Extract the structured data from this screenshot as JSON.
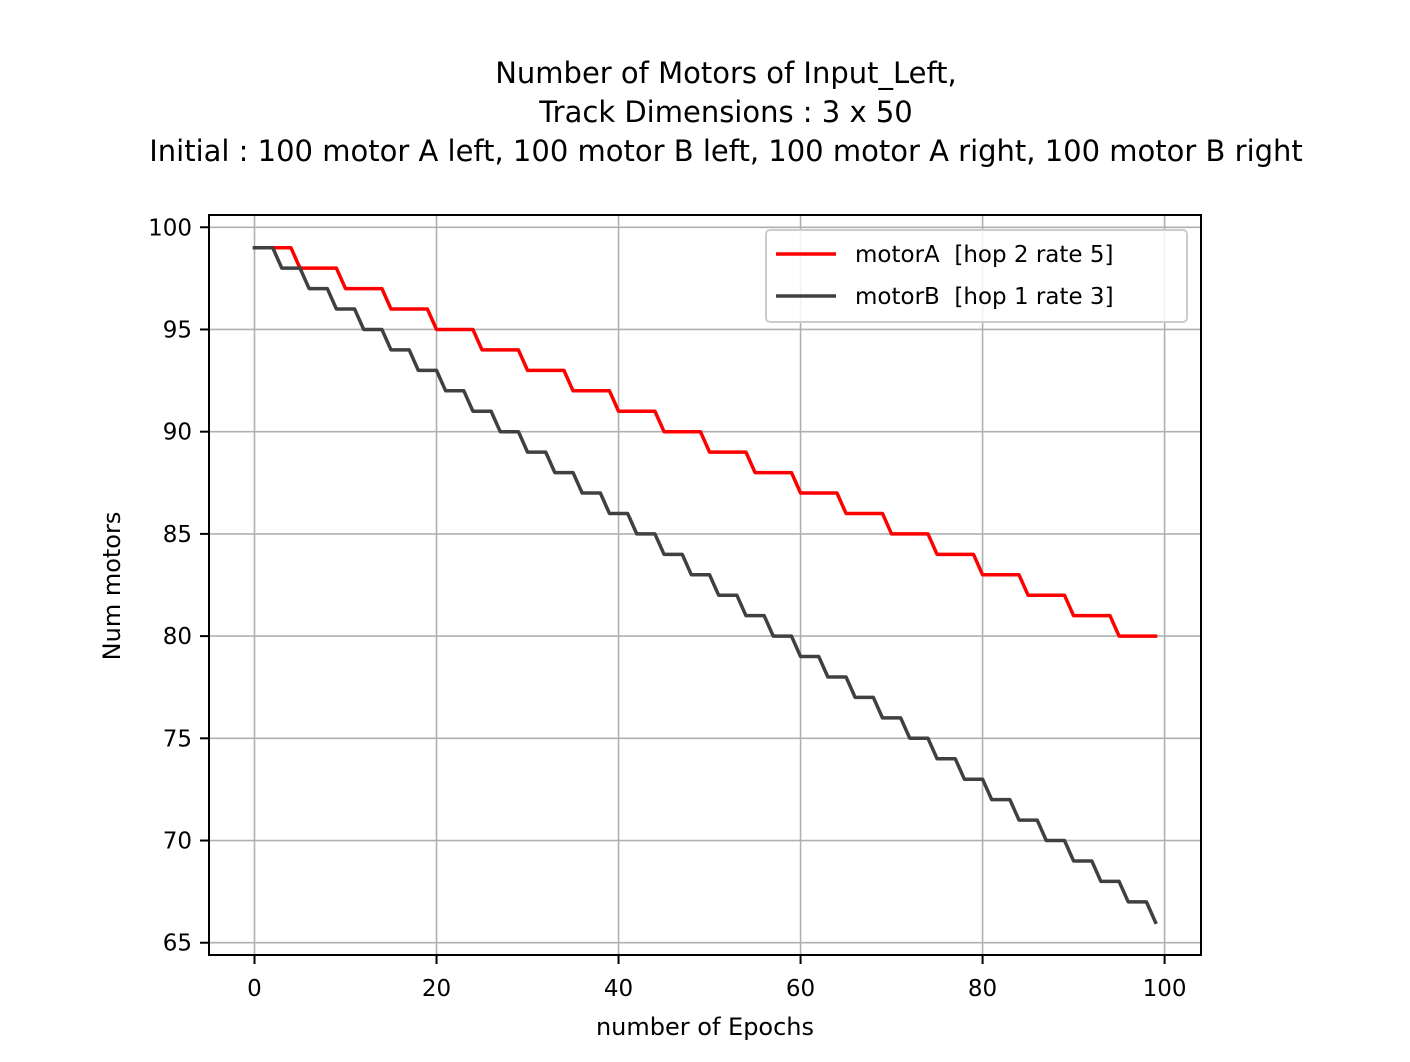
{
  "chart_data": {
    "type": "line",
    "title_lines": [
      "Number of Motors of Input_Left,",
      "Track Dimensions : 3 x 50",
      "Initial : 100 motor A left, 100 motor B left, 100 motor A right, 100 motor B right"
    ],
    "xlabel": "number of Epochs",
    "ylabel": "Num motors",
    "xlim": [
      -5,
      104
    ],
    "ylim": [
      64.4,
      100.6
    ],
    "xticks": [
      0,
      20,
      40,
      60,
      80,
      100
    ],
    "yticks": [
      65,
      70,
      75,
      80,
      85,
      90,
      95,
      100
    ],
    "grid": true,
    "legend_position": "top-right",
    "series": [
      {
        "name": "motorA  [hop 2 rate 5]",
        "color": "#ff0000",
        "x": [
          0,
          1,
          2,
          3,
          4,
          5,
          6,
          7,
          8,
          9,
          10,
          11,
          12,
          13,
          14,
          15,
          16,
          17,
          18,
          19,
          20,
          21,
          22,
          23,
          24,
          25,
          26,
          27,
          28,
          29,
          30,
          31,
          32,
          33,
          34,
          35,
          36,
          37,
          38,
          39,
          40,
          41,
          42,
          43,
          44,
          45,
          46,
          47,
          48,
          49,
          50,
          51,
          52,
          53,
          54,
          55,
          56,
          57,
          58,
          59,
          60,
          61,
          62,
          63,
          64,
          65,
          66,
          67,
          68,
          69,
          70,
          71,
          72,
          73,
          74,
          75,
          76,
          77,
          78,
          79,
          80,
          81,
          82,
          83,
          84,
          85,
          86,
          87,
          88,
          89,
          90,
          91,
          92,
          93,
          94,
          95,
          96,
          97,
          98,
          99
        ],
        "values": [
          99,
          99,
          99,
          99,
          99,
          98,
          98,
          98,
          98,
          98,
          97,
          97,
          97,
          97,
          97,
          96,
          96,
          96,
          96,
          96,
          95,
          95,
          95,
          95,
          95,
          94,
          94,
          94,
          94,
          94,
          93,
          93,
          93,
          93,
          93,
          92,
          92,
          92,
          92,
          92,
          91,
          91,
          91,
          91,
          91,
          90,
          90,
          90,
          90,
          90,
          89,
          89,
          89,
          89,
          89,
          88,
          88,
          88,
          88,
          88,
          87,
          87,
          87,
          87,
          87,
          86,
          86,
          86,
          86,
          86,
          85,
          85,
          85,
          85,
          85,
          84,
          84,
          84,
          84,
          84,
          83,
          83,
          83,
          83,
          83,
          82,
          82,
          82,
          82,
          82,
          81,
          81,
          81,
          81,
          81,
          80,
          80,
          80,
          80,
          80
        ]
      },
      {
        "name": "motorB  [hop 1 rate 3]",
        "color": "#404040",
        "x": [
          0,
          1,
          2,
          3,
          4,
          5,
          6,
          7,
          8,
          9,
          10,
          11,
          12,
          13,
          14,
          15,
          16,
          17,
          18,
          19,
          20,
          21,
          22,
          23,
          24,
          25,
          26,
          27,
          28,
          29,
          30,
          31,
          32,
          33,
          34,
          35,
          36,
          37,
          38,
          39,
          40,
          41,
          42,
          43,
          44,
          45,
          46,
          47,
          48,
          49,
          50,
          51,
          52,
          53,
          54,
          55,
          56,
          57,
          58,
          59,
          60,
          61,
          62,
          63,
          64,
          65,
          66,
          67,
          68,
          69,
          70,
          71,
          72,
          73,
          74,
          75,
          76,
          77,
          78,
          79,
          80,
          81,
          82,
          83,
          84,
          85,
          86,
          87,
          88,
          89,
          90,
          91,
          92,
          93,
          94,
          95,
          96,
          97,
          98,
          99
        ],
        "values": [
          99,
          99,
          99,
          98,
          98,
          98,
          97,
          97,
          97,
          96,
          96,
          96,
          95,
          95,
          95,
          94,
          94,
          94,
          93,
          93,
          93,
          92,
          92,
          92,
          91,
          91,
          91,
          90,
          90,
          90,
          89,
          89,
          89,
          88,
          88,
          88,
          87,
          87,
          87,
          86,
          86,
          86,
          85,
          85,
          85,
          84,
          84,
          84,
          83,
          83,
          83,
          82,
          82,
          82,
          81,
          81,
          81,
          80,
          80,
          80,
          79,
          79,
          79,
          78,
          78,
          78,
          77,
          77,
          77,
          76,
          76,
          76,
          75,
          75,
          75,
          74,
          74,
          74,
          73,
          73,
          73,
          72,
          72,
          72,
          71,
          71,
          71,
          70,
          70,
          70,
          69,
          69,
          69,
          68,
          68,
          68,
          67,
          67,
          67,
          66
        ]
      }
    ]
  }
}
